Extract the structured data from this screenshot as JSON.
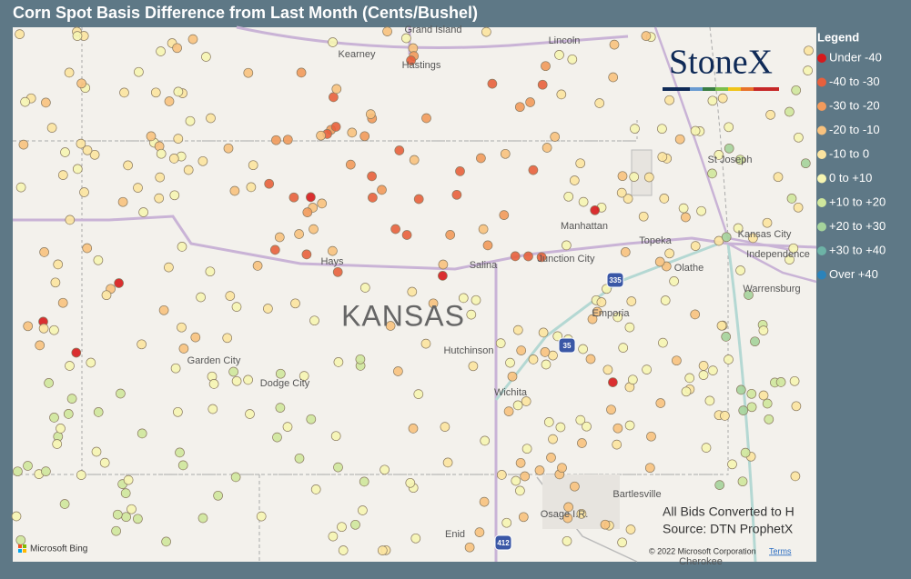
{
  "header": {
    "title": "Corn Spot Basis Difference from Last Month (Cents/Bushel)"
  },
  "legend": {
    "title": "Legend",
    "items": [
      {
        "label": "Under -40",
        "color": "#d7191c"
      },
      {
        "label": "-40 to -30",
        "color": "#e8603c"
      },
      {
        "label": "-30 to -20",
        "color": "#f29a5b"
      },
      {
        "label": "-20 to -10",
        "color": "#f8c27e"
      },
      {
        "label": "-10 to 0",
        "color": "#fce4a0"
      },
      {
        "label": "0 to +10",
        "color": "#f6f5b2"
      },
      {
        "label": "+10 to +20",
        "color": "#cfe79c"
      },
      {
        "label": "+20 to +30",
        "color": "#a5d39b"
      },
      {
        "label": "+30 to +40",
        "color": "#6db3a6"
      },
      {
        "label": "Over +40",
        "color": "#2b83ba"
      }
    ]
  },
  "map": {
    "state_label": "KANSAS",
    "places": [
      "Grand Island",
      "Lincoln",
      "Kearney",
      "Hastings",
      "St Joseph",
      "Manhattan",
      "Topeka",
      "Kansas City",
      "Independence",
      "Olathe",
      "Hays",
      "Salina",
      "Junction City",
      "Emporia",
      "Warrensburg",
      "Garden City",
      "Dodge City",
      "Hutchinson",
      "Wichita",
      "Bartlesville",
      "Osage I.R.",
      "Enid",
      "Cherokee"
    ],
    "shields": [
      "335",
      "35",
      "412"
    ],
    "logo": "StoneX",
    "notes": [
      "All Bids Converted to H",
      "Source: DTN ProphetX"
    ],
    "provider": "Microsoft Bing",
    "copyright": "© 2022 Microsoft Corporation",
    "terms": "Terms"
  }
}
